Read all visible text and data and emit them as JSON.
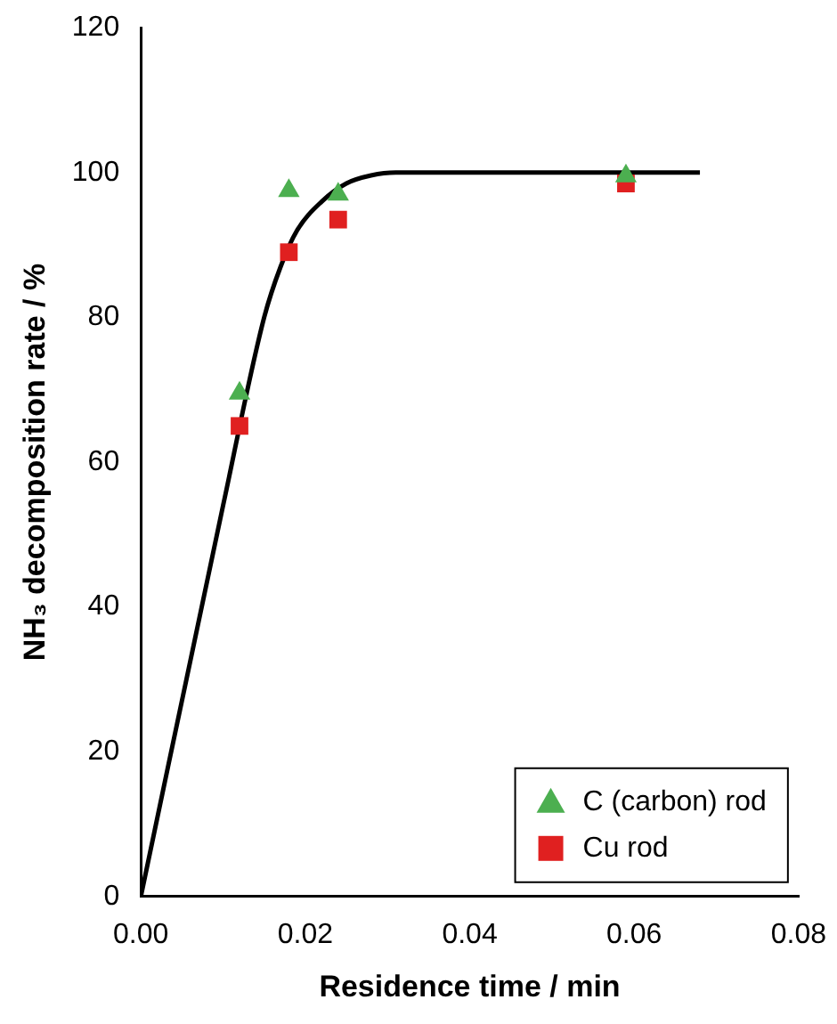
{
  "chart_data": {
    "type": "scatter",
    "xlabel": "Residence time / min",
    "ylabel": "NH₃ decomposition rate / %",
    "xlim": [
      0,
      0.08
    ],
    "xticks": [
      {
        "value": 0,
        "label": "0.00"
      },
      {
        "value": 0.02,
        "label": "0.02"
      },
      {
        "value": 0.04,
        "label": "0.04"
      },
      {
        "value": 0.06,
        "label": "0.06"
      },
      {
        "value": 0.08,
        "label": "0.08"
      }
    ],
    "ylim": [
      0,
      120
    ],
    "yticks": [
      0,
      20,
      40,
      60,
      80,
      100,
      120
    ],
    "grid": false,
    "legend": "bottom right",
    "series": [
      {
        "type": "line",
        "color": "#000000",
        "marker": "none",
        "line_style": "solid",
        "x": [
          0,
          0.01,
          0.015,
          0.017,
          0.019,
          0.022,
          0.025,
          0.028,
          0.031,
          0.068
        ],
        "values": [
          0,
          54,
          80,
          87,
          92,
          96,
          98.5,
          99.6,
          100,
          100
        ]
      },
      {
        "name": "C (carbon) rod",
        "color": "#4caf50",
        "marker": "triangle",
        "x": [
          0.012,
          0.018,
          0.024,
          0.059
        ],
        "values": [
          69.5,
          97.5,
          97,
          99.5
        ]
      },
      {
        "name": "Cu rod",
        "color": "#e02020",
        "marker": "square",
        "x": [
          0.012,
          0.018,
          0.024,
          0.059
        ],
        "values": [
          65,
          89,
          93.5,
          98.5
        ]
      }
    ]
  }
}
